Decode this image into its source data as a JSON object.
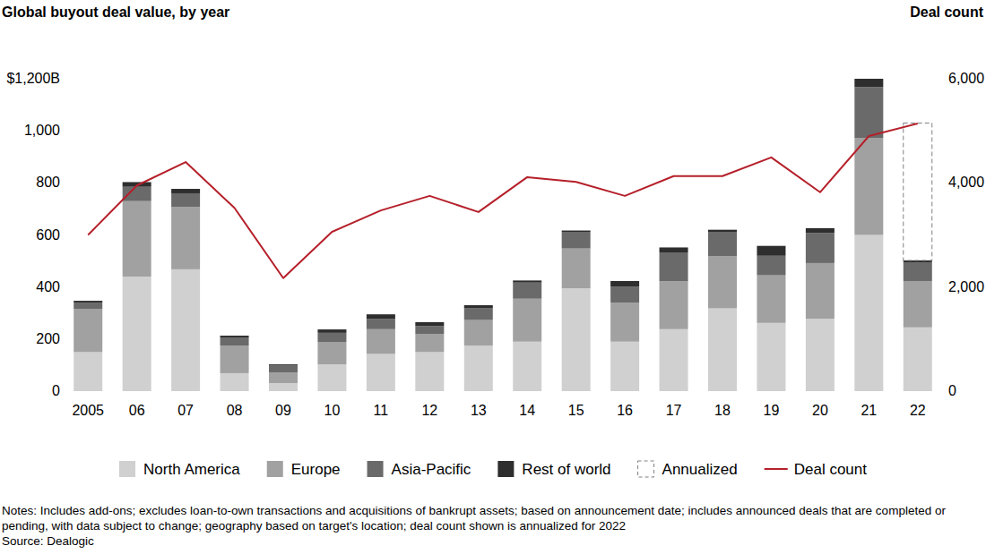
{
  "chart_data": {
    "type": "bar",
    "title": "Global buyout deal value, by year",
    "y2label": "Deal count",
    "notes": "Notes: Includes add-ons; excludes loan-to-own transactions and acquisitions of bankrupt assets; based on announcement date; includes announced deals that are completed or pending, with data subject to change; geography based on target's location; deal count shown is annualized for 2022",
    "source": "Source: Dealogic",
    "stacked": true,
    "legend": "bottom",
    "categories": [
      "2005",
      "06",
      "07",
      "08",
      "09",
      "10",
      "11",
      "12",
      "13",
      "14",
      "15",
      "16",
      "17",
      "18",
      "19",
      "20",
      "21",
      "22"
    ],
    "series": [
      {
        "name": "North America",
        "color": "#d0d0d0",
        "values": [
          150,
          440,
          468,
          69,
          31,
          103,
          143,
          150,
          175,
          190,
          395,
          190,
          238,
          318,
          262,
          278,
          600,
          245
        ]
      },
      {
        "name": "Europe",
        "color": "#a1a1a1",
        "values": [
          165,
          290,
          240,
          106,
          41,
          86,
          95,
          70,
          98,
          165,
          153,
          150,
          184,
          200,
          183,
          214,
          373,
          178
        ]
      },
      {
        "name": "Asia-Pacific",
        "color": "#6a6a6a",
        "values": [
          25,
          55,
          52,
          31,
          28,
          35,
          40,
          30,
          45,
          62,
          64,
          62,
          111,
          94,
          75,
          116,
          195,
          72
        ]
      },
      {
        "name": "Rest of world",
        "color": "#2e2e2e",
        "values": [
          7,
          18,
          17,
          7,
          3,
          13,
          17,
          15,
          12,
          8,
          5,
          21,
          19,
          8,
          38,
          18,
          32,
          7
        ]
      },
      {
        "name": "Annualized",
        "color": "#808080",
        "line_style": "dashed",
        "values": [
          null,
          null,
          null,
          null,
          null,
          null,
          null,
          null,
          null,
          null,
          null,
          null,
          null,
          null,
          null,
          null,
          null,
          528
        ]
      },
      {
        "name": "Deal count",
        "type": "line",
        "axis": "y2",
        "color": "#b5202a",
        "values": [
          3000,
          3950,
          4400,
          3520,
          2170,
          3060,
          3470,
          3750,
          3440,
          4110,
          4020,
          3750,
          4130,
          4130,
          4490,
          3820,
          4900,
          5140
        ]
      }
    ],
    "ylim": [
      0,
      1200
    ],
    "yticks": [
      0,
      200,
      400,
      600,
      800,
      {
        "value": 1000,
        "label": "1,000"
      },
      {
        "value": 1200,
        "label": "$1,200B"
      }
    ],
    "y2lim": [
      0,
      6000
    ],
    "y2ticks": [
      0,
      {
        "value": 2000,
        "label": "2,000"
      },
      {
        "value": 4000,
        "label": "4,000"
      },
      {
        "value": 6000,
        "label": "6,000"
      }
    ]
  }
}
